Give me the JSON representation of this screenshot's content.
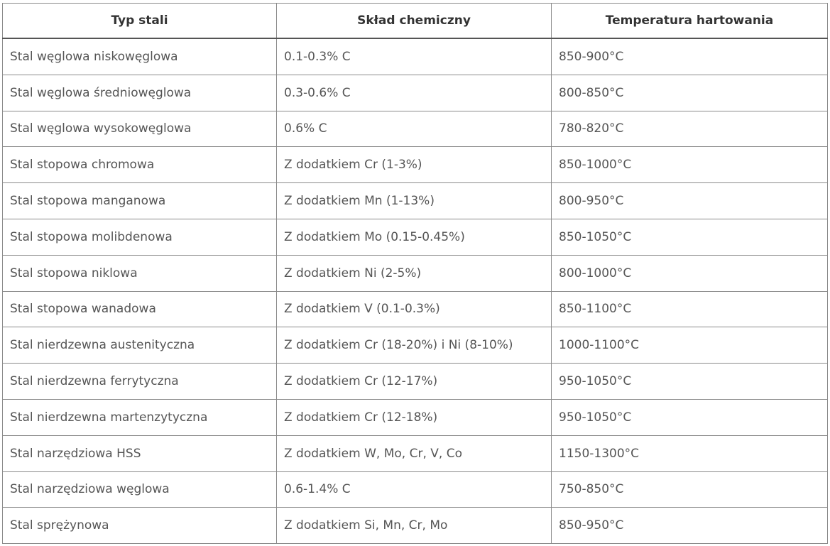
{
  "table": {
    "header": [
      "Typ stali",
      "Skład chemiczny",
      "Temperatura hartowania"
    ],
    "rows": [
      [
        "Stal węglowa niskowęglowa",
        "0.1-0.3% C",
        "850-900°C"
      ],
      [
        "Stal węglowa średniowęglowa",
        "0.3-0.6% C",
        "800-850°C"
      ],
      [
        "Stal węglowa wysokowęglowa",
        "0.6% C",
        "780-820°C"
      ],
      [
        "Stal stopowa chromowa",
        "Z dodatkiem Cr (1-3%)",
        "850-1000°C"
      ],
      [
        "Stal stopowa manganowa",
        "Z dodatkiem Mn (1-13%)",
        "800-950°C"
      ],
      [
        "Stal stopowa molibdenowa",
        "Z dodatkiem Mo (0.15-0.45%)",
        "850-1050°C"
      ],
      [
        "Stal stopowa niklowa",
        "Z dodatkiem Ni (2-5%)",
        "800-1000°C"
      ],
      [
        "Stal stopowa wanadowa",
        "Z dodatkiem V (0.1-0.3%)",
        "850-1100°C"
      ],
      [
        "Stal nierdzewna austenityczna",
        "Z dodatkiem Cr (18-20%) i Ni (8-10%)",
        "1000-1100°C"
      ],
      [
        "Stal nierdzewna ferrytyczna",
        "Z dodatkiem Cr (12-17%)",
        "950-1050°C"
      ],
      [
        "Stal nierdzewna martenzytyczna",
        "Z dodatkiem Cr (12-18%)",
        "950-1050°C"
      ],
      [
        "Stal narzędziowa HSS",
        "Z dodatkiem W, Mo, Cr, V, Co",
        "1150-1300°C"
      ],
      [
        "Stal narzędziowa węglowa",
        "0.6-1.4% C",
        "750-850°C"
      ],
      [
        "Stal sprężynowa",
        "Z dodatkiem Si, Mn, Cr, Mo",
        "850-950°C"
      ]
    ]
  }
}
